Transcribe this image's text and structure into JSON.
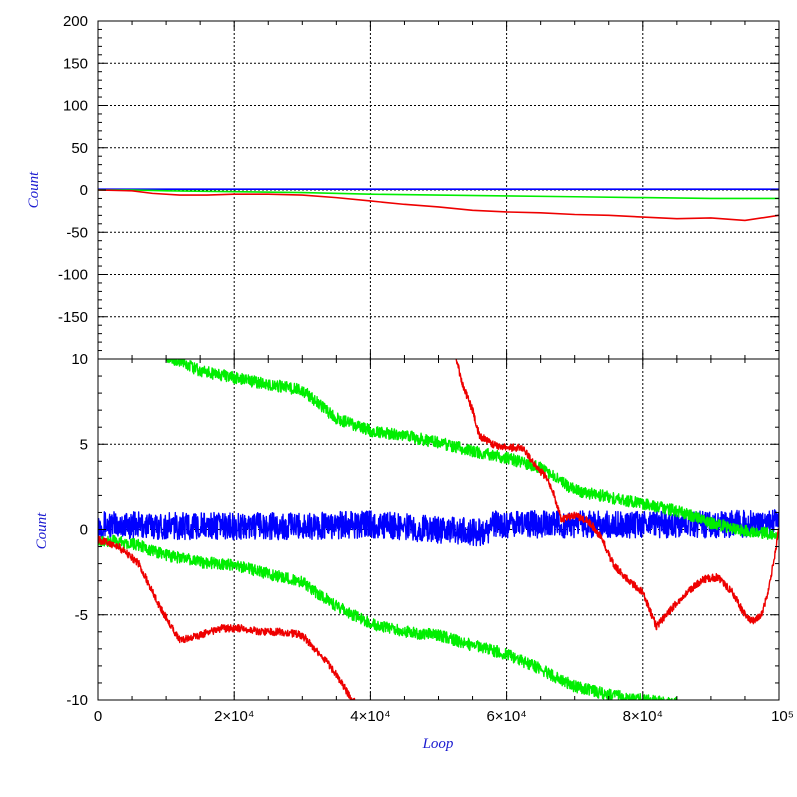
{
  "chart_data": [
    {
      "type": "line",
      "panel": "top",
      "ylabel": "Count",
      "xlabel": "",
      "xlim": [
        0,
        100000
      ],
      "ylim": [
        -200,
        200
      ],
      "grid": true,
      "yticks": [
        {
          "value": 200,
          "label": "200"
        },
        {
          "value": 150,
          "label": "150"
        },
        {
          "value": 100,
          "label": "100"
        },
        {
          "value": 50,
          "label": "50"
        },
        {
          "value": 0,
          "label": "0"
        },
        {
          "value": -50,
          "label": "-50"
        },
        {
          "value": -100,
          "label": "-100"
        },
        {
          "value": -150,
          "label": "-150"
        }
      ],
      "series": [
        {
          "color": "#0000ff",
          "points": [
            [
              0,
              1
            ],
            [
              10000,
              1
            ],
            [
              20000,
              1
            ],
            [
              30000,
              1
            ],
            [
              40000,
              1
            ],
            [
              50000,
              1
            ],
            [
              60000,
              1
            ],
            [
              70000,
              1
            ],
            [
              80000,
              1
            ],
            [
              90000,
              1
            ],
            [
              100000,
              1
            ]
          ]
        },
        {
          "color": "#00ee00",
          "points": [
            [
              0,
              0
            ],
            [
              5000,
              0
            ],
            [
              10000,
              -1
            ],
            [
              20000,
              -2
            ],
            [
              30000,
              -3
            ],
            [
              40000,
              -5
            ],
            [
              50000,
              -6
            ],
            [
              60000,
              -7
            ],
            [
              70000,
              -8
            ],
            [
              80000,
              -9
            ],
            [
              90000,
              -10
            ],
            [
              100000,
              -10
            ]
          ]
        },
        {
          "color": "#ee0000",
          "points": [
            [
              0,
              0
            ],
            [
              5000,
              -1
            ],
            [
              8000,
              -4
            ],
            [
              12000,
              -6
            ],
            [
              16000,
              -6
            ],
            [
              20000,
              -5
            ],
            [
              25000,
              -5
            ],
            [
              30000,
              -6
            ],
            [
              35000,
              -9
            ],
            [
              40000,
              -13
            ],
            [
              45000,
              -17
            ],
            [
              50000,
              -20
            ],
            [
              55000,
              -24
            ],
            [
              60000,
              -26
            ],
            [
              65000,
              -27
            ],
            [
              70000,
              -29
            ],
            [
              75000,
              -30
            ],
            [
              80000,
              -32
            ],
            [
              85000,
              -34
            ],
            [
              90000,
              -33
            ],
            [
              95000,
              -36
            ],
            [
              100000,
              -30
            ]
          ]
        }
      ]
    },
    {
      "type": "line",
      "panel": "bottom",
      "ylabel": "Count",
      "xlabel": "Loop",
      "xlim": [
        0,
        100000
      ],
      "ylim": [
        -10,
        10
      ],
      "grid": true,
      "yticks": [
        {
          "value": 10,
          "label": "10"
        },
        {
          "value": 5,
          "label": "5"
        },
        {
          "value": 0,
          "label": "0"
        },
        {
          "value": -5,
          "label": "-5"
        },
        {
          "value": -10,
          "label": "-10"
        }
      ],
      "xticks": [
        {
          "value": 0,
          "label": "0"
        },
        {
          "value": 20000,
          "label": "2×10⁴"
        },
        {
          "value": 40000,
          "label": "4×10⁴"
        },
        {
          "value": 60000,
          "label": "6×10⁴"
        },
        {
          "value": 80000,
          "label": "8×10⁴"
        },
        {
          "value": 100000,
          "label": "10⁵"
        }
      ],
      "series": [
        {
          "color": "#0000ff",
          "band": 0.8,
          "points": [
            [
              0,
              0.3
            ],
            [
              10000,
              0.2
            ],
            [
              20000,
              0.2
            ],
            [
              30000,
              0.2
            ],
            [
              40000,
              0.3
            ],
            [
              50000,
              0
            ],
            [
              57000,
              -0.2
            ],
            [
              58000,
              0.3
            ],
            [
              70000,
              0.3
            ],
            [
              80000,
              0.3
            ],
            [
              90000,
              0.3
            ],
            [
              100000,
              0.4
            ]
          ]
        },
        {
          "color": "#00ee00",
          "band": 0.35,
          "points": [
            [
              0,
              -0.6
            ],
            [
              5000,
              -0.8
            ],
            [
              10000,
              -1.5
            ],
            [
              15000,
              -1.9
            ],
            [
              20000,
              -2.1
            ],
            [
              25000,
              -2.6
            ],
            [
              30000,
              -3.1
            ],
            [
              35000,
              -4.5
            ],
            [
              40000,
              -5.5
            ],
            [
              45000,
              -6
            ],
            [
              50000,
              -6.2
            ],
            [
              55000,
              -6.8
            ],
            [
              60000,
              -7.3
            ],
            [
              65000,
              -8.2
            ],
            [
              70000,
              -9.2
            ],
            [
              75000,
              -9.7
            ],
            [
              80000,
              -10
            ],
            [
              85000,
              -10.2
            ]
          ]
        },
        {
          "color": "#00ee00",
          "band": 0.35,
          "points": [
            [
              10000,
              10.2
            ],
            [
              15000,
              9.3
            ],
            [
              20000,
              8.9
            ],
            [
              25000,
              8.5
            ],
            [
              30000,
              8.2
            ],
            [
              35000,
              6.5
            ],
            [
              40000,
              5.8
            ],
            [
              45000,
              5.5
            ],
            [
              50000,
              5.1
            ],
            [
              55000,
              4.6
            ],
            [
              60000,
              4.2
            ],
            [
              65000,
              3.6
            ],
            [
              70000,
              2.3
            ],
            [
              75000,
              1.9
            ],
            [
              80000,
              1.5
            ],
            [
              85000,
              1.1
            ],
            [
              90000,
              0.4
            ],
            [
              95000,
              -0.1
            ],
            [
              100000,
              -0.3
            ]
          ]
        },
        {
          "color": "#ee0000",
          "band": 0.22,
          "points": [
            [
              0,
              -0.6
            ],
            [
              3000,
              -1
            ],
            [
              6000,
              -2
            ],
            [
              9000,
              -4.5
            ],
            [
              12000,
              -6.5
            ],
            [
              15000,
              -6.2
            ],
            [
              18000,
              -5.8
            ],
            [
              21000,
              -5.8
            ],
            [
              24000,
              -6
            ],
            [
              27000,
              -6
            ],
            [
              30000,
              -6.2
            ],
            [
              33000,
              -7.5
            ],
            [
              35000,
              -8.5
            ],
            [
              37000,
              -9.8
            ],
            [
              38000,
              -10.3
            ]
          ]
        },
        {
          "color": "#ee0000",
          "band": 0.22,
          "points": [
            [
              52500,
              10.2
            ],
            [
              53500,
              8.5
            ],
            [
              55000,
              7
            ],
            [
              56000,
              5.5
            ],
            [
              58000,
              5
            ],
            [
              60000,
              4.8
            ],
            [
              62000,
              4.8
            ],
            [
              63000,
              4.5
            ],
            [
              64000,
              3.8
            ],
            [
              66000,
              3
            ],
            [
              67000,
              2
            ],
            [
              68000,
              0.6
            ],
            [
              70000,
              0.8
            ],
            [
              72000,
              0.5
            ],
            [
              74000,
              -0.5
            ],
            [
              75000,
              -1.5
            ],
            [
              76000,
              -2.2
            ],
            [
              78000,
              -3
            ],
            [
              80000,
              -3.7
            ],
            [
              82000,
              -5.7
            ],
            [
              83000,
              -5.2
            ],
            [
              85000,
              -4.3
            ],
            [
              87000,
              -3.5
            ],
            [
              89000,
              -2.9
            ],
            [
              91000,
              -2.8
            ],
            [
              93000,
              -3.6
            ],
            [
              95000,
              -5
            ],
            [
              96000,
              -5.4
            ],
            [
              97500,
              -5
            ],
            [
              98500,
              -3.5
            ],
            [
              99500,
              -1.2
            ],
            [
              100000,
              0.2
            ]
          ]
        }
      ]
    }
  ]
}
